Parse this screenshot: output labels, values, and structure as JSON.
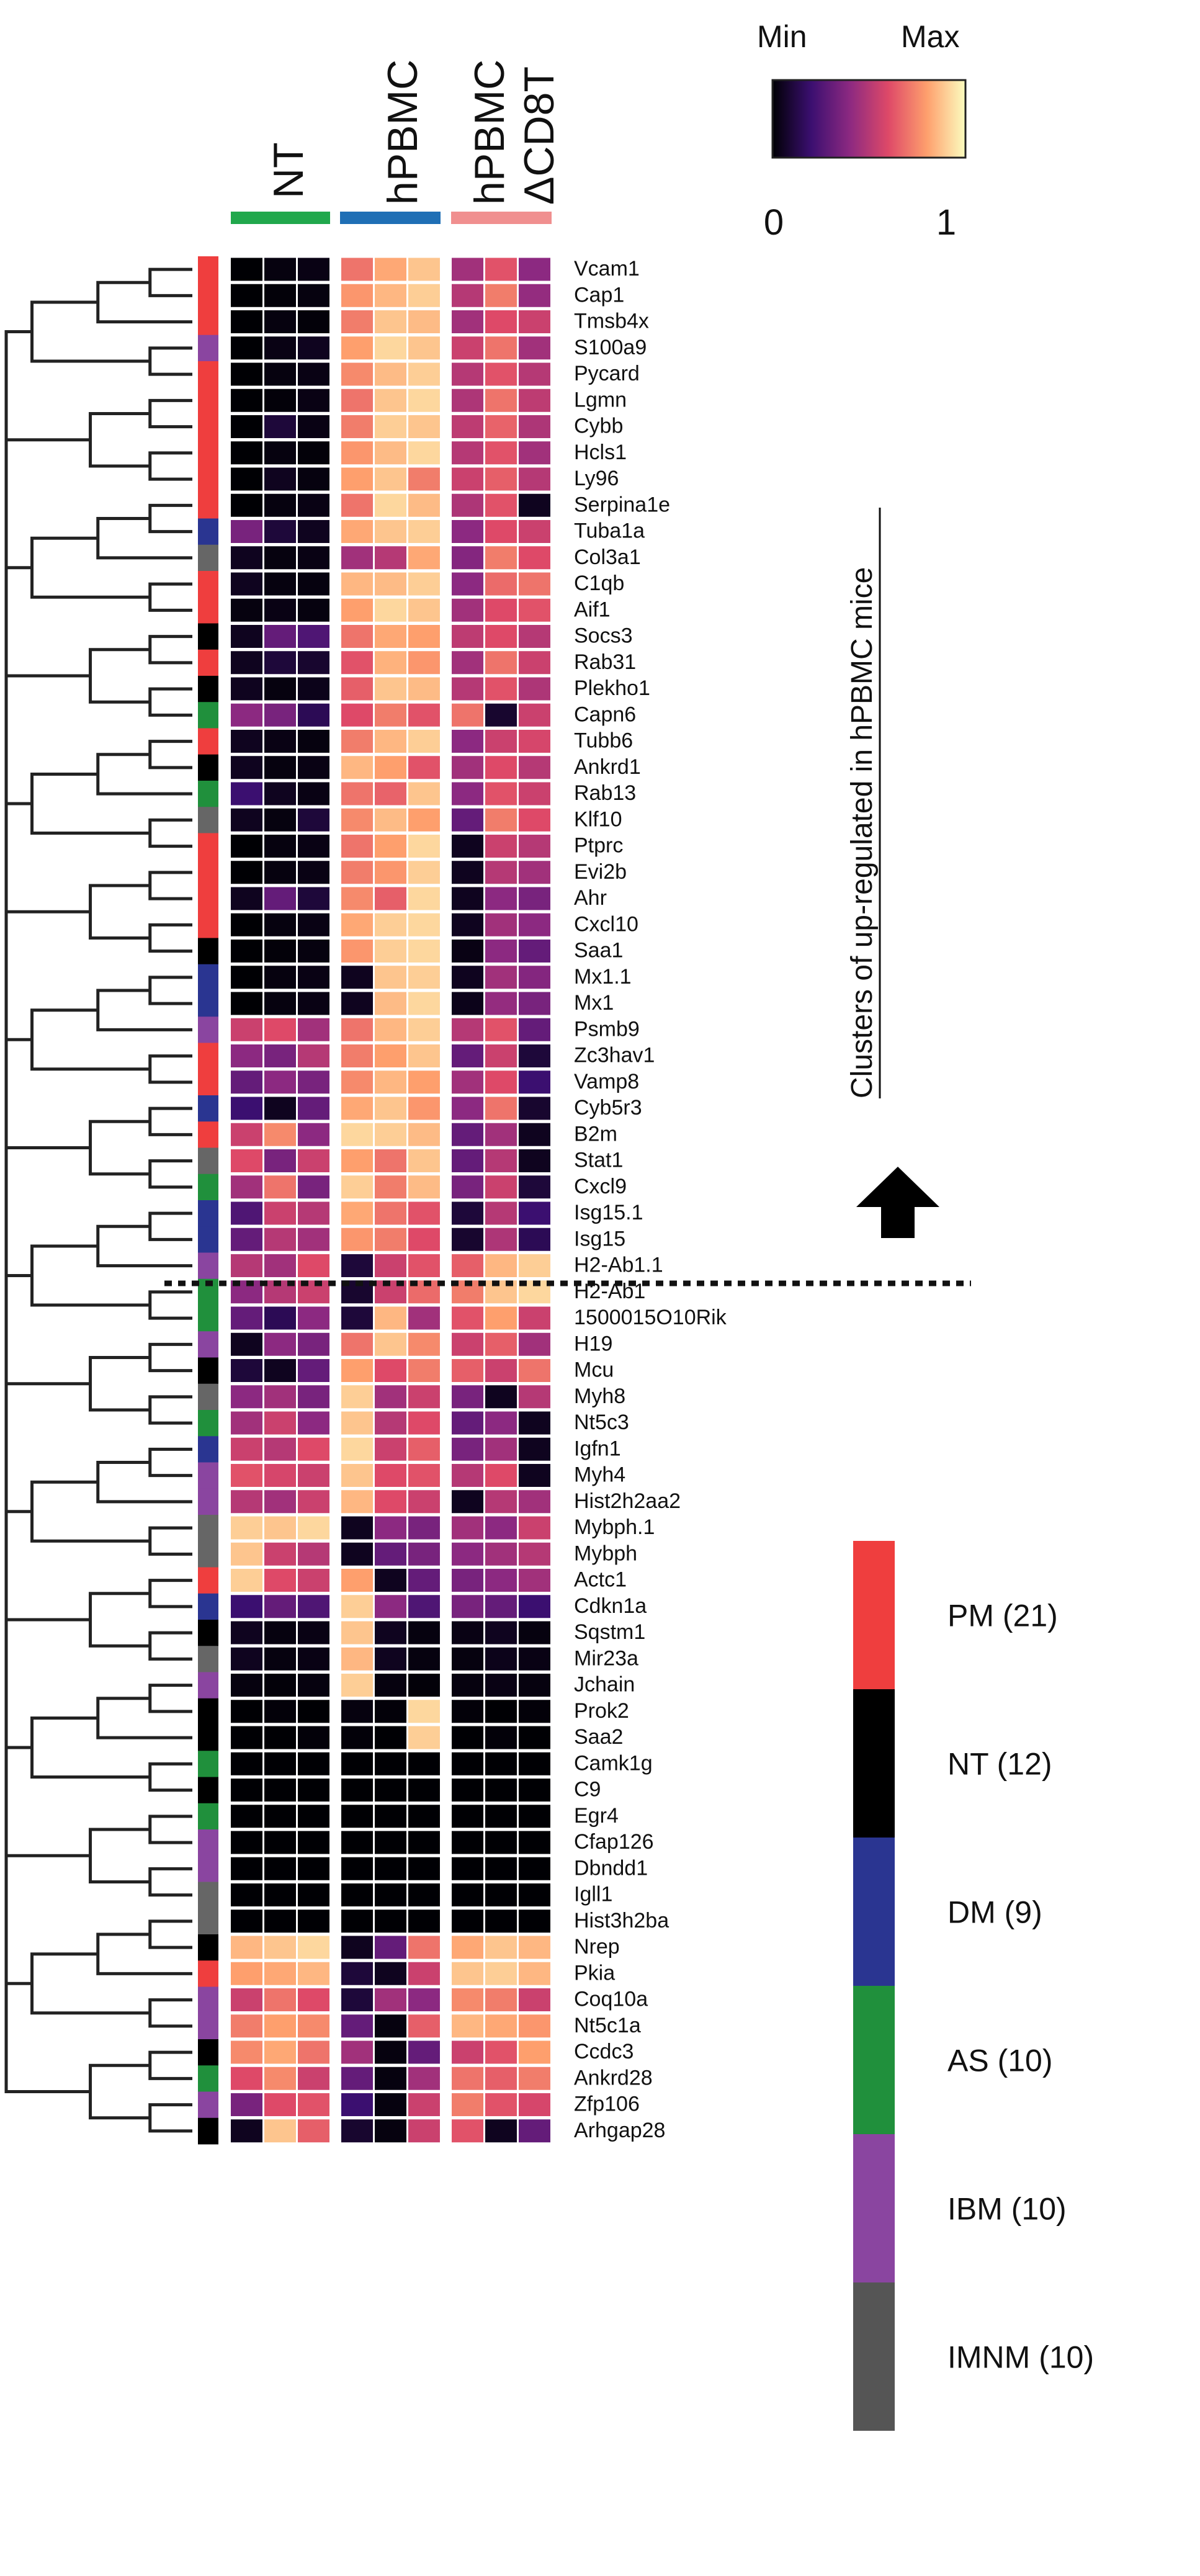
{
  "chart_data": {
    "type": "heatmap",
    "conditions": [
      {
        "name": "NT",
        "name2": "",
        "color": "#21a84c",
        "columns": 3
      },
      {
        "name": "hPBMC",
        "name2": "",
        "color": "#1f6fb5",
        "columns": 3
      },
      {
        "name": "hPBMC",
        "name2": "ΔCD8T",
        "color": "#f08f8f",
        "columns": 3
      }
    ],
    "colorbar": {
      "min_label": "Min",
      "max_label": "Max",
      "tick_low": "0",
      "tick_high": "1",
      "stops": [
        "#000004",
        "#3b0f70",
        "#8c2981",
        "#de4968",
        "#fe9f6d",
        "#fcfdbf"
      ]
    },
    "annotation_text": "Clusters of up-regulated in hPBMC mice",
    "legend": [
      {
        "label": "PM (21)",
        "color": "#ef3e3e"
      },
      {
        "label": "NT (12)",
        "color": "#000000"
      },
      {
        "label": "DM (9)",
        "color": "#2a3591"
      },
      {
        "label": "AS (10)",
        "color": "#20903c"
      },
      {
        "label": "IBM (10)",
        "color": "#8a45a0"
      },
      {
        "label": "IMNM (10)",
        "color": "#555555"
      }
    ],
    "category_colors": {
      "PM": "#ef3e3e",
      "NT": "#000000",
      "DM": "#2a3591",
      "AS": "#20903c",
      "IBM": "#8a45a0",
      "IMNM": "#666666"
    },
    "rows": [
      {
        "gene": "Vcam1",
        "category": "PM",
        "values": [
          0.0,
          0.02,
          0.03,
          0.7,
          0.82,
          0.88,
          0.45,
          0.62,
          0.4
        ]
      },
      {
        "gene": "Cap1",
        "category": "PM",
        "values": [
          0.0,
          0.01,
          0.02,
          0.78,
          0.85,
          0.9,
          0.5,
          0.72,
          0.42
        ]
      },
      {
        "gene": "Tmsb4x",
        "category": "PM",
        "values": [
          0.0,
          0.02,
          0.01,
          0.72,
          0.88,
          0.86,
          0.45,
          0.6,
          0.55
        ]
      },
      {
        "gene": "S100a9",
        "category": "IBM",
        "values": [
          0.0,
          0.03,
          0.05,
          0.8,
          0.92,
          0.88,
          0.55,
          0.7,
          0.45
        ]
      },
      {
        "gene": "Pycard",
        "category": "PM",
        "values": [
          0.0,
          0.02,
          0.03,
          0.75,
          0.86,
          0.9,
          0.5,
          0.62,
          0.5
        ]
      },
      {
        "gene": "Lgmn",
        "category": "PM",
        "values": [
          0.0,
          0.01,
          0.03,
          0.7,
          0.88,
          0.92,
          0.48,
          0.7,
          0.52
        ]
      },
      {
        "gene": "Cybb",
        "category": "PM",
        "values": [
          0.0,
          0.1,
          0.03,
          0.72,
          0.9,
          0.88,
          0.52,
          0.66,
          0.48
        ]
      },
      {
        "gene": "Hcls1",
        "category": "PM",
        "values": [
          0.0,
          0.02,
          0.01,
          0.78,
          0.86,
          0.92,
          0.5,
          0.62,
          0.45
        ]
      },
      {
        "gene": "Ly96",
        "category": "PM",
        "values": [
          0.0,
          0.05,
          0.02,
          0.8,
          0.88,
          0.72,
          0.55,
          0.65,
          0.5
        ]
      },
      {
        "gene": "Serpina1e",
        "category": "PM",
        "values": [
          0.0,
          0.02,
          0.03,
          0.7,
          0.92,
          0.86,
          0.48,
          0.62,
          0.05
        ]
      },
      {
        "gene": "Tuba1a",
        "category": "DM",
        "values": [
          0.35,
          0.1,
          0.05,
          0.82,
          0.88,
          0.9,
          0.4,
          0.6,
          0.55
        ]
      },
      {
        "gene": "Col3a1",
        "category": "IMNM",
        "values": [
          0.05,
          0.02,
          0.03,
          0.45,
          0.5,
          0.82,
          0.38,
          0.72,
          0.6
        ]
      },
      {
        "gene": "C1qb",
        "category": "PM",
        "values": [
          0.05,
          0.02,
          0.02,
          0.85,
          0.86,
          0.9,
          0.4,
          0.68,
          0.7
        ]
      },
      {
        "gene": "Aif1",
        "category": "PM",
        "values": [
          0.02,
          0.03,
          0.02,
          0.8,
          0.92,
          0.88,
          0.45,
          0.6,
          0.62
        ]
      },
      {
        "gene": "Socs3",
        "category": "NT",
        "values": [
          0.05,
          0.3,
          0.25,
          0.7,
          0.82,
          0.8,
          0.52,
          0.6,
          0.5
        ]
      },
      {
        "gene": "Rab31",
        "category": "PM",
        "values": [
          0.05,
          0.1,
          0.08,
          0.62,
          0.84,
          0.78,
          0.45,
          0.7,
          0.55
        ]
      },
      {
        "gene": "Plekho1",
        "category": "NT",
        "values": [
          0.05,
          0.02,
          0.04,
          0.65,
          0.88,
          0.86,
          0.5,
          0.62,
          0.48
        ]
      },
      {
        "gene": "Capn6",
        "category": "AS",
        "values": [
          0.4,
          0.35,
          0.15,
          0.6,
          0.72,
          0.62,
          0.7,
          0.08,
          0.55
        ]
      },
      {
        "gene": "Tubb6",
        "category": "PM",
        "values": [
          0.05,
          0.03,
          0.02,
          0.72,
          0.85,
          0.9,
          0.4,
          0.55,
          0.58
        ]
      },
      {
        "gene": "Ankrd1",
        "category": "NT",
        "values": [
          0.05,
          0.02,
          0.03,
          0.85,
          0.8,
          0.62,
          0.45,
          0.6,
          0.5
        ]
      },
      {
        "gene": "Rab13",
        "category": "AS",
        "values": [
          0.2,
          0.05,
          0.03,
          0.7,
          0.66,
          0.88,
          0.4,
          0.62,
          0.55
        ]
      },
      {
        "gene": "Klf10",
        "category": "IMNM",
        "values": [
          0.05,
          0.02,
          0.1,
          0.75,
          0.86,
          0.8,
          0.3,
          0.72,
          0.6
        ]
      },
      {
        "gene": "Ptprc",
        "category": "PM",
        "values": [
          0.0,
          0.02,
          0.03,
          0.7,
          0.8,
          0.92,
          0.05,
          0.55,
          0.5
        ]
      },
      {
        "gene": "Evi2b",
        "category": "PM",
        "values": [
          0.0,
          0.02,
          0.03,
          0.72,
          0.78,
          0.9,
          0.05,
          0.5,
          0.45
        ]
      },
      {
        "gene": "Ahr",
        "category": "PM",
        "values": [
          0.05,
          0.3,
          0.1,
          0.75,
          0.65,
          0.92,
          0.05,
          0.4,
          0.35
        ]
      },
      {
        "gene": "Cxcl10",
        "category": "PM",
        "values": [
          0.0,
          0.02,
          0.03,
          0.82,
          0.9,
          0.92,
          0.05,
          0.45,
          0.4
        ]
      },
      {
        "gene": "Saa1",
        "category": "NT",
        "values": [
          0.0,
          0.01,
          0.02,
          0.78,
          0.9,
          0.92,
          0.03,
          0.4,
          0.3
        ]
      },
      {
        "gene": "Mx1.1",
        "category": "DM",
        "values": [
          0.0,
          0.02,
          0.03,
          0.05,
          0.88,
          0.9,
          0.05,
          0.45,
          0.38
        ]
      },
      {
        "gene": "Mx1",
        "category": "DM",
        "values": [
          0.0,
          0.02,
          0.03,
          0.05,
          0.86,
          0.92,
          0.04,
          0.42,
          0.35
        ]
      },
      {
        "gene": "Psmb9",
        "category": "IBM",
        "values": [
          0.55,
          0.6,
          0.45,
          0.7,
          0.85,
          0.9,
          0.5,
          0.62,
          0.3
        ]
      },
      {
        "gene": "Zc3hav1",
        "category": "PM",
        "values": [
          0.4,
          0.35,
          0.5,
          0.72,
          0.8,
          0.88,
          0.3,
          0.55,
          0.1
        ]
      },
      {
        "gene": "Vamp8",
        "category": "PM",
        "values": [
          0.3,
          0.4,
          0.35,
          0.75,
          0.85,
          0.8,
          0.45,
          0.6,
          0.2
        ]
      },
      {
        "gene": "Cyb5r3",
        "category": "DM",
        "values": [
          0.2,
          0.05,
          0.3,
          0.82,
          0.88,
          0.78,
          0.4,
          0.7,
          0.08
        ]
      },
      {
        "gene": "B2m",
        "category": "PM",
        "values": [
          0.55,
          0.75,
          0.4,
          0.92,
          0.9,
          0.86,
          0.3,
          0.45,
          0.05
        ]
      },
      {
        "gene": "Stat1",
        "category": "IMNM",
        "values": [
          0.6,
          0.35,
          0.55,
          0.8,
          0.7,
          0.88,
          0.3,
          0.5,
          0.05
        ]
      },
      {
        "gene": "Cxcl9",
        "category": "AS",
        "values": [
          0.45,
          0.7,
          0.35,
          0.9,
          0.72,
          0.86,
          0.35,
          0.55,
          0.1
        ]
      },
      {
        "gene": "Isg15.1",
        "category": "DM",
        "values": [
          0.25,
          0.55,
          0.5,
          0.82,
          0.7,
          0.62,
          0.1,
          0.5,
          0.2
        ]
      },
      {
        "gene": "Isg15",
        "category": "DM",
        "values": [
          0.3,
          0.5,
          0.45,
          0.78,
          0.72,
          0.6,
          0.08,
          0.48,
          0.15
        ]
      },
      {
        "gene": "H2-Ab1.1",
        "category": "IBM",
        "values": [
          0.5,
          0.45,
          0.6,
          0.1,
          0.55,
          0.62,
          0.65,
          0.85,
          0.9
        ]
      },
      {
        "gene": "H2-Ab1",
        "category": "AS",
        "values": [
          0.4,
          0.5,
          0.55,
          0.08,
          0.55,
          0.68,
          0.72,
          0.88,
          0.92
        ]
      },
      {
        "gene": "1500015O10Rik",
        "category": "AS",
        "values": [
          0.3,
          0.15,
          0.4,
          0.1,
          0.85,
          0.45,
          0.62,
          0.8,
          0.55
        ]
      },
      {
        "gene": "H19",
        "category": "IBM",
        "values": [
          0.05,
          0.4,
          0.35,
          0.7,
          0.88,
          0.75,
          0.55,
          0.65,
          0.45
        ]
      },
      {
        "gene": "Mcu",
        "category": "NT",
        "values": [
          0.1,
          0.05,
          0.3,
          0.8,
          0.6,
          0.72,
          0.65,
          0.55,
          0.7
        ]
      },
      {
        "gene": "Myh8",
        "category": "IMNM",
        "values": [
          0.4,
          0.45,
          0.35,
          0.9,
          0.45,
          0.55,
          0.35,
          0.05,
          0.5
        ]
      },
      {
        "gene": "Nt5c3",
        "category": "AS",
        "values": [
          0.45,
          0.55,
          0.4,
          0.88,
          0.5,
          0.6,
          0.3,
          0.4,
          0.05
        ]
      },
      {
        "gene": "Igfn1",
        "category": "DM",
        "values": [
          0.55,
          0.5,
          0.6,
          0.92,
          0.55,
          0.65,
          0.35,
          0.45,
          0.05
        ]
      },
      {
        "gene": "Myh4",
        "category": "IBM",
        "values": [
          0.62,
          0.58,
          0.55,
          0.88,
          0.6,
          0.62,
          0.5,
          0.6,
          0.05
        ]
      },
      {
        "gene": "Hist2h2aa2",
        "category": "IBM",
        "values": [
          0.5,
          0.45,
          0.55,
          0.85,
          0.6,
          0.55,
          0.05,
          0.5,
          0.45
        ]
      },
      {
        "gene": "Mybph.1",
        "category": "IMNM",
        "values": [
          0.9,
          0.88,
          0.92,
          0.05,
          0.4,
          0.35,
          0.45,
          0.4,
          0.55
        ]
      },
      {
        "gene": "Mybph",
        "category": "IMNM",
        "values": [
          0.88,
          0.55,
          0.5,
          0.05,
          0.3,
          0.35,
          0.4,
          0.45,
          0.5
        ]
      },
      {
        "gene": "Actc1",
        "category": "PM",
        "values": [
          0.9,
          0.6,
          0.55,
          0.8,
          0.05,
          0.3,
          0.35,
          0.4,
          0.45
        ]
      },
      {
        "gene": "Cdkn1a",
        "category": "DM",
        "values": [
          0.2,
          0.3,
          0.25,
          0.9,
          0.4,
          0.25,
          0.35,
          0.3,
          0.2
        ]
      },
      {
        "gene": "Sqstm1",
        "category": "NT",
        "values": [
          0.05,
          0.02,
          0.03,
          0.88,
          0.05,
          0.02,
          0.03,
          0.05,
          0.02
        ]
      },
      {
        "gene": "Mir23a",
        "category": "IMNM",
        "values": [
          0.05,
          0.02,
          0.03,
          0.85,
          0.05,
          0.02,
          0.02,
          0.04,
          0.03
        ]
      },
      {
        "gene": "Jchain",
        "category": "IBM",
        "values": [
          0.02,
          0.01,
          0.02,
          0.9,
          0.02,
          0.01,
          0.02,
          0.03,
          0.02
        ]
      },
      {
        "gene": "Prok2",
        "category": "NT",
        "values": [
          0.0,
          0.01,
          0.0,
          0.02,
          0.01,
          0.92,
          0.01,
          0.0,
          0.01
        ]
      },
      {
        "gene": "Saa2",
        "category": "NT",
        "values": [
          0.0,
          0.0,
          0.01,
          0.01,
          0.0,
          0.9,
          0.0,
          0.01,
          0.0
        ]
      },
      {
        "gene": "Camk1g",
        "category": "AS",
        "values": [
          0.0,
          0.0,
          0.0,
          0.0,
          0.0,
          0.0,
          0.0,
          0.0,
          0.0
        ]
      },
      {
        "gene": "C9",
        "category": "NT",
        "values": [
          0.0,
          0.0,
          0.0,
          0.0,
          0.0,
          0.0,
          0.0,
          0.0,
          0.0
        ]
      },
      {
        "gene": "Egr4",
        "category": "AS",
        "values": [
          0.0,
          0.0,
          0.0,
          0.0,
          0.0,
          0.0,
          0.0,
          0.0,
          0.0
        ]
      },
      {
        "gene": "Cfap126",
        "category": "IBM",
        "values": [
          0.0,
          0.0,
          0.0,
          0.0,
          0.0,
          0.0,
          0.0,
          0.0,
          0.0
        ]
      },
      {
        "gene": "Dbndd1",
        "category": "IBM",
        "values": [
          0.0,
          0.0,
          0.0,
          0.0,
          0.0,
          0.0,
          0.0,
          0.0,
          0.0
        ]
      },
      {
        "gene": "Igll1",
        "category": "IMNM",
        "values": [
          0.0,
          0.0,
          0.0,
          0.0,
          0.0,
          0.0,
          0.0,
          0.0,
          0.0
        ]
      },
      {
        "gene": "Hist3h2ba",
        "category": "IMNM",
        "values": [
          0.0,
          0.0,
          0.0,
          0.0,
          0.0,
          0.0,
          0.0,
          0.0,
          0.0
        ]
      },
      {
        "gene": "Nrep",
        "category": "NT",
        "values": [
          0.85,
          0.88,
          0.92,
          0.05,
          0.3,
          0.7,
          0.82,
          0.88,
          0.85
        ]
      },
      {
        "gene": "Pkia",
        "category": "PM",
        "values": [
          0.8,
          0.82,
          0.85,
          0.1,
          0.05,
          0.55,
          0.88,
          0.9,
          0.85
        ]
      },
      {
        "gene": "Coq10a",
        "category": "IBM",
        "values": [
          0.55,
          0.7,
          0.6,
          0.1,
          0.45,
          0.4,
          0.75,
          0.72,
          0.55
        ]
      },
      {
        "gene": "Nt5c1a",
        "category": "IBM",
        "values": [
          0.72,
          0.8,
          0.75,
          0.3,
          0.02,
          0.65,
          0.85,
          0.82,
          0.78
        ]
      },
      {
        "gene": "Ccdc3",
        "category": "NT",
        "values": [
          0.75,
          0.82,
          0.7,
          0.45,
          0.02,
          0.3,
          0.55,
          0.62,
          0.8
        ]
      },
      {
        "gene": "Ankrd28",
        "category": "AS",
        "values": [
          0.6,
          0.75,
          0.55,
          0.3,
          0.02,
          0.45,
          0.7,
          0.65,
          0.72
        ]
      },
      {
        "gene": "Zfp106",
        "category": "IBM",
        "values": [
          0.35,
          0.6,
          0.62,
          0.2,
          0.02,
          0.55,
          0.72,
          0.62,
          0.58
        ]
      },
      {
        "gene": "Arhgap28",
        "category": "NT",
        "values": [
          0.05,
          0.88,
          0.65,
          0.08,
          0.02,
          0.55,
          0.62,
          0.05,
          0.3
        ]
      }
    ]
  }
}
